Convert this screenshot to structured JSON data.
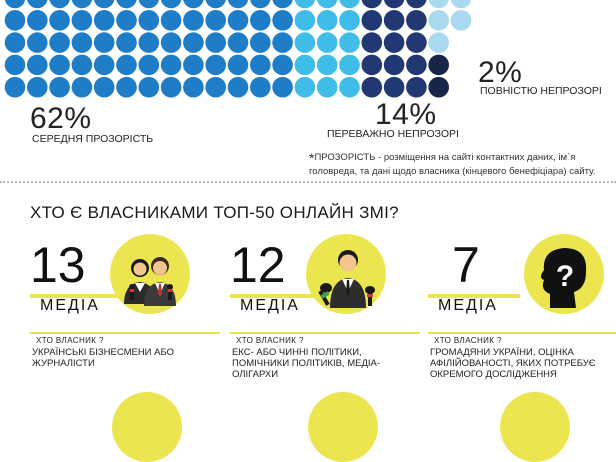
{
  "transparency": {
    "colors": {
      "average": "#1f7dc8",
      "mostly_opaque": "#3fbde8",
      "opaque": "#223872",
      "fully_opaque": "#172648",
      "legend_light": "#a9d9ee"
    },
    "average": {
      "percent": "62%",
      "label": "СЕРЕДНЯ ПРОЗОРІСТЬ"
    },
    "mostly_opaque": {
      "percent": "14%",
      "label": "ПЕРЕВАЖНО НЕПРОЗОРІ"
    },
    "fully_opaque": {
      "percent": "2%",
      "label": "ПОВНІСТЮ НЕПРОЗОРІ"
    },
    "footnote": {
      "star": "*",
      "text": "ПРОЗОРІСТЬ -  розміщення на сайті контактних даних, ім`я головреда, та дані щодо власника (кінцевого бенефіціара) сайту."
    }
  },
  "owners": {
    "question": "ХТО Є ВЛАСНИКАМИ ТОП-50 ОНЛАЙН ЗМІ?",
    "accent_color": "#ebe54f",
    "groups": [
      {
        "count": "13",
        "unit": "МЕДІА",
        "who_label": "ХТО ВЛАСНИК ?",
        "description": "УКРАЇНСЬКІ БІЗНЕСМЕНИ АБО ЖУРНАЛІСТИ",
        "icon": "journalists-icon"
      },
      {
        "count": "12",
        "unit": "МЕДІА",
        "who_label": "ХТО ВЛАСНИК ?",
        "description": "ЕКС- АБО ЧИННІ ПОЛІТИКИ, ПОМІЧНИКИ ПОЛІТИКІВ, МЕДІА-ОЛІГАРХИ",
        "icon": "politician-icon"
      },
      {
        "count": "7",
        "unit": "МЕДІА",
        "who_label": "ХТО ВЛАСНИК ?",
        "description": "ГРОМАДЯНИ УКРАЇНИ, ОЦІНКА АФІЛІЙОВАНОСТІ, ЯКИХ ПОТРЕБУЄ ОКРЕМОГО ДОСЛІДЖЕННЯ",
        "icon": "unknown-person-icon"
      }
    ]
  }
}
